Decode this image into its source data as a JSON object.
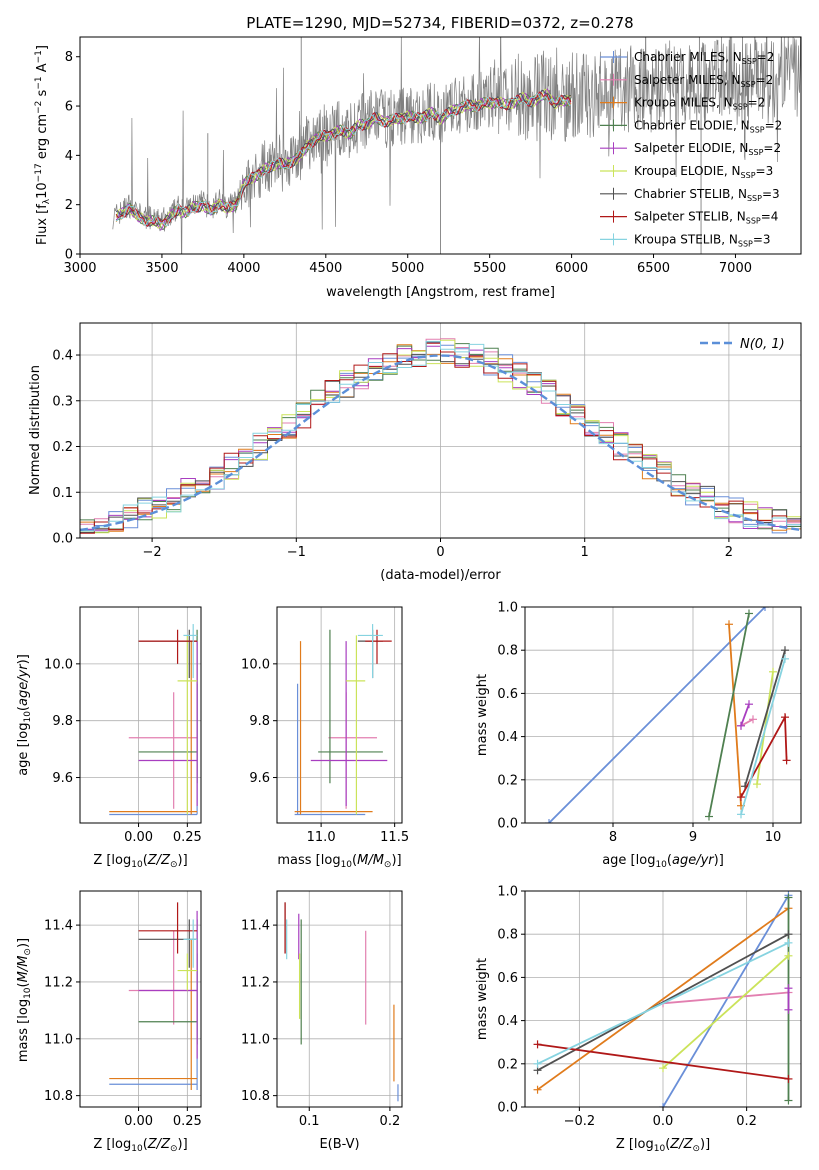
{
  "figure_title": "PLATE=1290, MJD=52734, FIBERID=0372, z=0.278",
  "palette": {
    "Chabrier MILES": "#6a8fd8",
    "Salpeter MILES": "#e27fb0",
    "Kroupa MILES": "#e07b1c",
    "Chabrier ELODIE": "#4f8050",
    "Salpeter ELODIE": "#a83ec0",
    "Kroupa ELODIE": "#cbe35a",
    "Chabrier STELIB": "#505050",
    "Salpeter STELIB": "#b01818",
    "Kroupa STELIB": "#86d3e0",
    "data": "#808080",
    "normal": "#5b8fd8"
  },
  "chart_data": [
    {
      "type": "line",
      "panel": "spectrum",
      "xlabel": "wavelength [Angstrom, rest frame]",
      "ylabel": "Flux [f_λ 10^-17 erg cm^-2 s^-1 A^-1]",
      "xlim": [
        3000,
        7400
      ],
      "ylim": [
        0,
        8.8
      ],
      "xticks": [
        3000,
        3500,
        4000,
        4500,
        5000,
        5500,
        6000,
        6500,
        7000
      ],
      "yticks": [
        0,
        2,
        4,
        6,
        8
      ],
      "grid": false,
      "legend_position": "top-right",
      "legend": [
        {
          "label": "Chabrier MILES, N",
          "sub": "SSP",
          "eq": "=2"
        },
        {
          "label": "Salpeter MILES, N",
          "sub": "SSP",
          "eq": "=2"
        },
        {
          "label": "Kroupa MILES, N",
          "sub": "SSP",
          "eq": "=2"
        },
        {
          "label": "Chabrier ELODIE, N",
          "sub": "SSP",
          "eq": "=2"
        },
        {
          "label": "Salpeter ELODIE, N",
          "sub": "SSP",
          "eq": "=2"
        },
        {
          "label": "Kroupa ELODIE, N",
          "sub": "SSP",
          "eq": "=3"
        },
        {
          "label": "Chabrier STELIB, N",
          "sub": "SSP",
          "eq": "=3"
        },
        {
          "label": "Salpeter STELIB, N",
          "sub": "SSP",
          "eq": "=4"
        },
        {
          "label": "Kroupa STELIB, N",
          "sub": "SSP",
          "eq": "=3"
        }
      ],
      "data_wave": [
        3200,
        3250,
        3300,
        3350,
        3400,
        3450,
        3500,
        3550,
        3600,
        3650,
        3700,
        3750,
        3800,
        3850,
        3900,
        3950,
        4000,
        4050,
        4100,
        4150,
        4200,
        4250,
        4300,
        4350,
        4400,
        4450,
        4500,
        4550,
        4600,
        4650,
        4700,
        4750,
        4800,
        4850,
        4900,
        4950,
        5000,
        5050,
        5100,
        5150,
        5200,
        5250,
        5300,
        5350,
        5400,
        5450,
        5500,
        5550,
        5600,
        5650,
        5700,
        5750,
        5800,
        5850,
        5900,
        5950,
        6000,
        6050,
        6100,
        6150,
        6200,
        6250,
        6300,
        6350,
        6400,
        6450,
        6500,
        6550,
        6600,
        6650,
        6700,
        6750,
        6800,
        6850,
        6900,
        6950,
        7000,
        7050,
        7100,
        7150,
        7200,
        7250,
        7300,
        7350,
        7400
      ],
      "data_flux": [
        1.5,
        1.7,
        2.0,
        1.6,
        1.5,
        1.4,
        1.3,
        1.6,
        1.9,
        1.8,
        2.0,
        2.1,
        1.8,
        2.2,
        1.9,
        2.1,
        2.9,
        3.2,
        3.4,
        3.6,
        3.8,
        3.7,
        3.9,
        4.1,
        4.6,
        4.8,
        4.9,
        5.0,
        5.1,
        5.0,
        5.3,
        5.4,
        5.6,
        5.5,
        5.5,
        5.6,
        5.7,
        5.6,
        5.7,
        5.8,
        5.6,
        5.8,
        6.0,
        6.1,
        6.1,
        6.2,
        6.2,
        6.3,
        6.1,
        6.3,
        6.4,
        6.3,
        6.4,
        6.6,
        6.2,
        6.3,
        6.4,
        6.5,
        6.4,
        6.6,
        6.7,
        6.5,
        6.8,
        6.7,
        6.9,
        6.8,
        6.7,
        6.9,
        7.0,
        6.9,
        6.9,
        6.8,
        7.0,
        7.1,
        7.0,
        7.1,
        7.0,
        6.9,
        7.1,
        7.2,
        7.0,
        7.1,
        7.3,
        7.2,
        7.2
      ]
    },
    {
      "type": "line",
      "panel": "residual-histogram",
      "xlabel": "(data-model)/error",
      "ylabel": "Normed distribution",
      "xlim": [
        -2.5,
        2.5
      ],
      "ylim": [
        0,
        0.47
      ],
      "xticks": [
        -2,
        -1,
        0,
        1,
        2
      ],
      "yticks": [
        0.0,
        0.1,
        0.2,
        0.3,
        0.4
      ],
      "grid": true,
      "legend_position": "top-right",
      "normal_label": "N(0, 1)",
      "bin_width": 0.1
    },
    {
      "type": "scatter",
      "panel": "age-vs-Z",
      "xlabel": "Z [log10(Z/Z⊙)]",
      "ylabel": "age [log10(age/yr)]",
      "xlim": [
        -0.3,
        0.32
      ],
      "ylim": [
        9.44,
        10.2
      ],
      "xticks": [
        0.0,
        0.25
      ],
      "yticks": [
        9.6,
        9.8,
        10.0
      ],
      "grid": true
    },
    {
      "type": "scatter",
      "panel": "age-vs-mass",
      "xlabel": "mass [log10(M/M⊙)]",
      "ylabel": "",
      "xlim": [
        10.7,
        11.55
      ],
      "ylim": [
        9.44,
        10.2
      ],
      "xticks": [
        11.0,
        11.5
      ],
      "yticks": [
        9.6,
        9.8,
        10.0
      ],
      "grid": true
    },
    {
      "type": "line",
      "panel": "mass-weight-vs-age",
      "xlabel": "age [log10(age/yr)]",
      "ylabel": "mass weight",
      "xlim": [
        6.9,
        10.35
      ],
      "ylim": [
        0,
        1.0
      ],
      "xticks": [
        8,
        9,
        10
      ],
      "yticks": [
        0.0,
        0.2,
        0.4,
        0.6,
        0.8,
        1.0
      ],
      "grid": true
    },
    {
      "type": "scatter",
      "panel": "mass-vs-Z",
      "xlabel": "Z [log10(Z/Z⊙)]",
      "ylabel": "mass [log10(M/M⊙)]",
      "xlim": [
        -0.3,
        0.32
      ],
      "ylim": [
        10.76,
        11.52
      ],
      "xticks": [
        0.0,
        0.25
      ],
      "yticks": [
        10.8,
        11.0,
        11.2,
        11.4
      ],
      "grid": true
    },
    {
      "type": "scatter",
      "panel": "mass-vs-EBV",
      "xlabel": "E(B-V)",
      "ylabel": "",
      "xlim": [
        0.06,
        0.215
      ],
      "ylim": [
        10.76,
        11.52
      ],
      "xticks": [
        0.1,
        0.2
      ],
      "yticks": [
        10.8,
        11.0,
        11.2,
        11.4
      ],
      "grid": true
    },
    {
      "type": "line",
      "panel": "mass-weight-vs-Z",
      "xlabel": "Z [log10(Z/Z⊙)]",
      "ylabel": "mass weight",
      "xlim": [
        -0.33,
        0.33
      ],
      "ylim": [
        0,
        1.0
      ],
      "xticks": [
        -0.2,
        0.0,
        0.2
      ],
      "yticks": [
        0.0,
        0.2,
        0.4,
        0.6,
        0.8,
        1.0
      ],
      "grid": true
    }
  ],
  "models": [
    {
      "name": "Chabrier MILES",
      "age": 9.47,
      "age_lo": 9.47,
      "age_hi": 9.93,
      "Z": 0.3,
      "Z_lo": -0.15,
      "Z_hi": 0.3,
      "mass": 10.84,
      "mass_lo": 10.82,
      "mass_hi": 11.3,
      "ebv": 0.21,
      "ebv_lo": 10.78,
      "ebv_hi": 10.84,
      "w_age": [
        7.2,
        9.9
      ],
      "w_age_y": [
        0.0,
        1.0
      ],
      "w_Z": [
        0.0,
        0.3
      ],
      "w_Z_y": [
        0.0,
        0.98
      ]
    },
    {
      "name": "Salpeter MILES",
      "age": 9.74,
      "age_lo": 9.49,
      "age_hi": 9.9,
      "Z": 0.18,
      "Z_lo": -0.05,
      "Z_hi": 0.3,
      "mass": 11.17,
      "mass_lo": 11.05,
      "mass_hi": 11.38,
      "ebv": 0.17,
      "ebv_lo": 11.05,
      "ebv_hi": 11.38,
      "w_age": [
        9.6,
        9.75
      ],
      "w_age_y": [
        0.45,
        0.48
      ],
      "w_Z": [
        0.0,
        0.3
      ],
      "w_Z_y": [
        0.48,
        0.53
      ]
    },
    {
      "name": "Kroupa MILES",
      "age": 9.48,
      "age_lo": 9.47,
      "age_hi": 10.08,
      "Z": 0.27,
      "Z_lo": -0.15,
      "Z_hi": 0.3,
      "mass": 10.86,
      "mass_lo": 10.82,
      "mass_hi": 11.35,
      "ebv": 0.205,
      "ebv_lo": 10.85,
      "ebv_hi": 11.12,
      "w_age": [
        9.45,
        9.6
      ],
      "w_age_y": [
        0.92,
        0.08
      ],
      "w_Z": [
        -0.3,
        0.3
      ],
      "w_Z_y": [
        0.08,
        0.92
      ]
    },
    {
      "name": "Chabrier ELODIE",
      "age": 9.69,
      "age_lo": 9.58,
      "age_hi": 10.12,
      "Z": 0.3,
      "Z_lo": 0.0,
      "Z_hi": 0.3,
      "mass": 11.06,
      "mass_lo": 10.98,
      "mass_hi": 11.42,
      "ebv": 0.09,
      "ebv_lo": 10.98,
      "ebv_hi": 11.42,
      "w_age": [
        9.2,
        9.7
      ],
      "w_age_y": [
        0.03,
        0.97
      ],
      "w_Z": [
        0.3,
        0.3
      ],
      "w_Z_y": [
        0.03,
        0.97
      ]
    },
    {
      "name": "Salpeter ELODIE",
      "age": 9.66,
      "age_lo": 9.5,
      "age_hi": 10.08,
      "Z": 0.3,
      "Z_lo": 0.0,
      "Z_hi": 0.3,
      "mass": 11.17,
      "mass_lo": 10.93,
      "mass_hi": 11.45,
      "ebv": 0.087,
      "ebv_lo": 11.28,
      "ebv_hi": 11.44,
      "w_age": [
        9.6,
        9.7
      ],
      "w_age_y": [
        0.45,
        0.55
      ],
      "w_Z": [
        0.3,
        0.3
      ],
      "w_Z_y": [
        0.45,
        0.55
      ]
    },
    {
      "name": "Kroupa ELODIE",
      "age": 9.94,
      "age_lo": 9.47,
      "age_hi": 10.1,
      "Z": 0.25,
      "Z_lo": 0.2,
      "Z_hi": 0.3,
      "mass": 11.24,
      "mass_lo": 11.17,
      "mass_hi": 11.3,
      "ebv": 0.088,
      "ebv_lo": 11.07,
      "ebv_hi": 11.3,
      "w_age": [
        9.8,
        10.0
      ],
      "w_age_y": [
        0.18,
        0.7
      ],
      "w_Z": [
        0.0,
        0.3
      ],
      "w_Z_y": [
        0.18,
        0.7
      ]
    },
    {
      "name": "Chabrier STELIB",
      "age": 10.08,
      "age_lo": 9.95,
      "age_hi": 10.12,
      "Z": 0.26,
      "Z_lo": 0.0,
      "Z_hi": 0.3,
      "mass": 11.35,
      "mass_lo": 11.25,
      "mass_hi": 11.42,
      "ebv": 0.07,
      "ebv_lo": 11.3,
      "ebv_hi": 11.48,
      "w_age": [
        9.65,
        10.15
      ],
      "w_age_y": [
        0.17,
        0.8
      ],
      "w_Z": [
        -0.3,
        0.3
      ],
      "w_Z_y": [
        0.17,
        0.8
      ]
    },
    {
      "name": "Salpeter STELIB",
      "age": 10.08,
      "age_lo": 10.0,
      "age_hi": 10.12,
      "Z": 0.2,
      "Z_lo": 0.0,
      "Z_hi": 0.3,
      "mass": 11.38,
      "mass_lo": 11.3,
      "mass_hi": 11.48,
      "ebv": 0.07,
      "ebv_lo": 11.3,
      "ebv_hi": 11.48,
      "w_age": [
        9.6,
        10.15,
        10.17
      ],
      "w_age_y": [
        0.12,
        0.49,
        0.29
      ],
      "w_Z": [
        -0.3,
        0.3
      ],
      "w_Z_y": [
        0.29,
        0.13
      ]
    },
    {
      "name": "Kroupa STELIB",
      "age": 10.1,
      "age_lo": 9.95,
      "age_hi": 10.14,
      "Z": 0.28,
      "Z_lo": 0.23,
      "Z_hi": 0.3,
      "mass": 11.35,
      "mass_lo": 11.25,
      "mass_hi": 11.42,
      "ebv": 0.072,
      "ebv_lo": 11.28,
      "ebv_hi": 11.42,
      "w_age": [
        9.6,
        10.15
      ],
      "w_age_y": [
        0.04,
        0.76
      ],
      "w_Z": [
        -0.3,
        0.3
      ],
      "w_Z_y": [
        0.2,
        0.76
      ]
    }
  ]
}
